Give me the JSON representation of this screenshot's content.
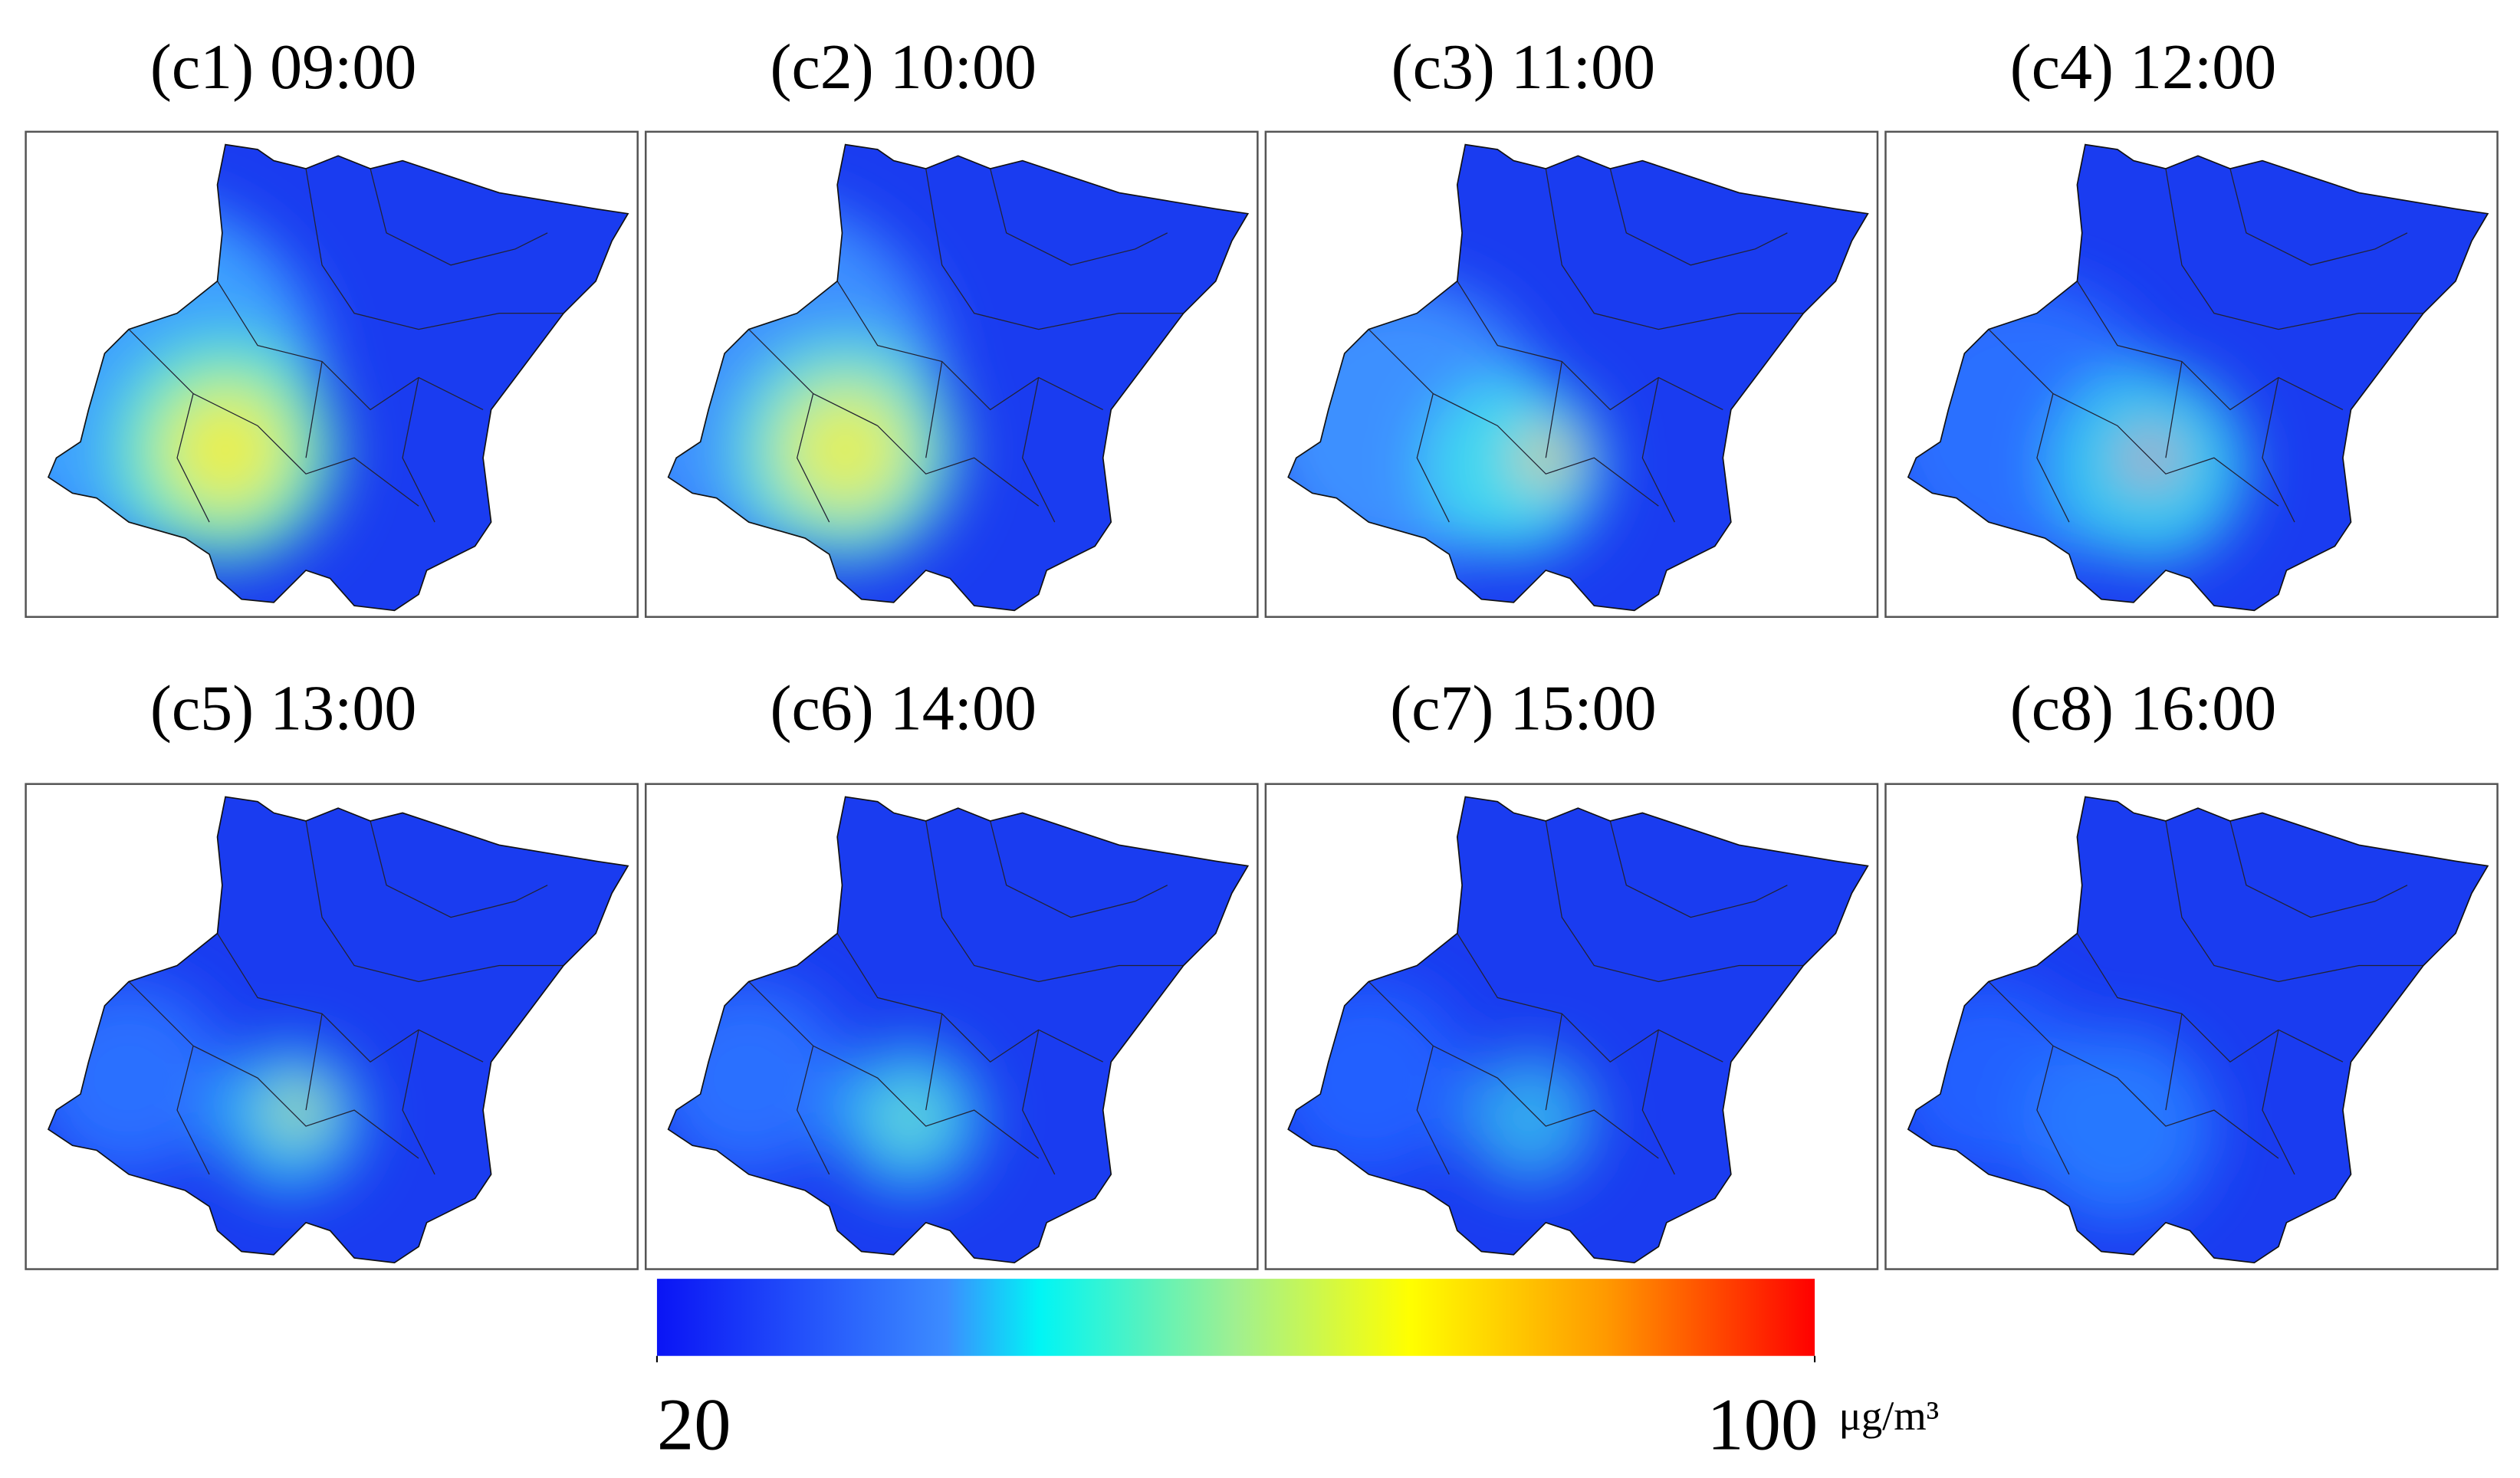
{
  "panels": [
    {
      "label": "(c1) 09:00"
    },
    {
      "label": "(c2) 10:00"
    },
    {
      "label": "(c3) 11:00"
    },
    {
      "label": "(c4) 12:00"
    },
    {
      "label": "(c5) 13:00"
    },
    {
      "label": "(c6) 14:00"
    },
    {
      "label": "(c7) 15:00"
    },
    {
      "label": "(c8) 16:00"
    }
  ],
  "colorbar": {
    "min": 20,
    "max": 100,
    "ticks": [
      20,
      100
    ],
    "unit": "μg/m³"
  }
}
